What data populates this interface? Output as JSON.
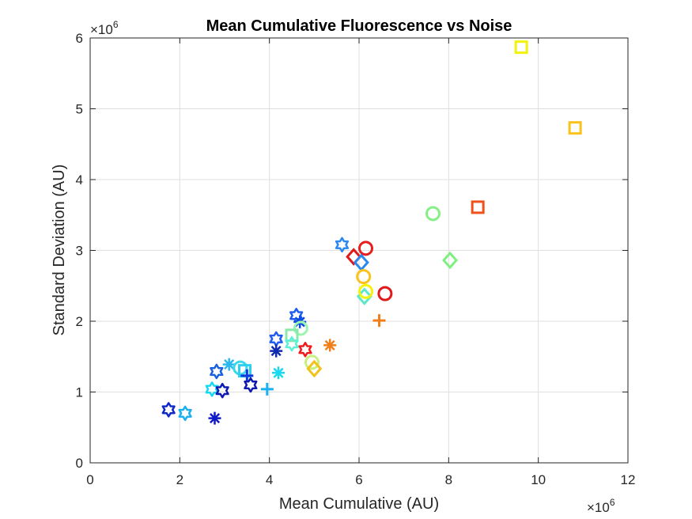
{
  "chart_data": {
    "type": "scatter",
    "title": "Mean Cumulative Fluorescence vs Noise",
    "xlabel": "Mean Cumulative (AU)",
    "ylabel": "Standard Deviation (AU)",
    "x_exponent_label": "×10",
    "x_exponent": "6",
    "y_exponent_label": "×10",
    "y_exponent": "6",
    "xlim": [
      0,
      12
    ],
    "ylim": [
      0,
      6
    ],
    "xticks": [
      "0",
      "2",
      "4",
      "6",
      "8",
      "10",
      "12"
    ],
    "yticks": [
      "0",
      "1",
      "2",
      "3",
      "4",
      "5",
      "6"
    ],
    "grid": true,
    "points": [
      {
        "x": 9.62,
        "y": 5.87,
        "marker": "square",
        "color": "#f2f20d"
      },
      {
        "x": 10.82,
        "y": 4.73,
        "marker": "square",
        "color": "#fac21a"
      },
      {
        "x": 8.65,
        "y": 3.61,
        "marker": "square",
        "color": "#f0501a"
      },
      {
        "x": 7.65,
        "y": 3.52,
        "marker": "circle",
        "color": "#85f085"
      },
      {
        "x": 8.03,
        "y": 2.86,
        "marker": "diamond",
        "color": "#7ff07f"
      },
      {
        "x": 5.62,
        "y": 3.08,
        "marker": "hexagram",
        "color": "#2b88f0"
      },
      {
        "x": 6.15,
        "y": 3.03,
        "marker": "circle",
        "color": "#e81e1e"
      },
      {
        "x": 5.88,
        "y": 2.91,
        "marker": "diamond",
        "color": "#e01a1a"
      },
      {
        "x": 6.05,
        "y": 2.83,
        "marker": "diamond",
        "color": "#2b88f0"
      },
      {
        "x": 6.1,
        "y": 2.63,
        "marker": "circle",
        "color": "#fac21a"
      },
      {
        "x": 6.58,
        "y": 2.39,
        "marker": "circle",
        "color": "#e01a1a"
      },
      {
        "x": 6.12,
        "y": 2.35,
        "marker": "diamond",
        "color": "#5ce8c8"
      },
      {
        "x": 6.15,
        "y": 2.42,
        "marker": "circle",
        "color": "#f2f20d"
      },
      {
        "x": 6.45,
        "y": 2.01,
        "marker": "plus",
        "color": "#f07f1a"
      },
      {
        "x": 4.6,
        "y": 2.08,
        "marker": "hexagram",
        "color": "#1f5cf0"
      },
      {
        "x": 4.68,
        "y": 1.99,
        "marker": "asterisk",
        "color": "#0f4ae0"
      },
      {
        "x": 4.7,
        "y": 1.9,
        "marker": "circle",
        "color": "#9af5b0"
      },
      {
        "x": 4.15,
        "y": 1.75,
        "marker": "hexagram",
        "color": "#1f5cf0"
      },
      {
        "x": 4.15,
        "y": 1.58,
        "marker": "asterisk",
        "color": "#0f2ab0"
      },
      {
        "x": 4.5,
        "y": 1.8,
        "marker": "square",
        "color": "#8ae8a8"
      },
      {
        "x": 4.5,
        "y": 1.68,
        "marker": "hexagram",
        "color": "#5cf0d8"
      },
      {
        "x": 4.8,
        "y": 1.6,
        "marker": "hexagram",
        "color": "#f01a1a"
      },
      {
        "x": 5.35,
        "y": 1.66,
        "marker": "asterisk",
        "color": "#f07f1a"
      },
      {
        "x": 4.95,
        "y": 1.42,
        "marker": "circle",
        "color": "#c8f07f"
      },
      {
        "x": 5.0,
        "y": 1.33,
        "marker": "diamond",
        "color": "#f2c21a"
      },
      {
        "x": 4.2,
        "y": 1.27,
        "marker": "asterisk",
        "color": "#1ad8f0"
      },
      {
        "x": 3.95,
        "y": 1.04,
        "marker": "plus",
        "color": "#1ab0f0"
      },
      {
        "x": 3.1,
        "y": 1.39,
        "marker": "asterisk",
        "color": "#2bb8f0"
      },
      {
        "x": 3.35,
        "y": 1.34,
        "marker": "circle",
        "color": "#3ad8e8"
      },
      {
        "x": 3.45,
        "y": 1.3,
        "marker": "square",
        "color": "#2bd0f0"
      },
      {
        "x": 3.5,
        "y": 1.23,
        "marker": "plus",
        "color": "#0f3ae0"
      },
      {
        "x": 3.58,
        "y": 1.1,
        "marker": "hexagram",
        "color": "#0f1ab0"
      },
      {
        "x": 2.82,
        "y": 1.29,
        "marker": "hexagram",
        "color": "#1a60e0"
      },
      {
        "x": 2.72,
        "y": 1.04,
        "marker": "hexagram",
        "color": "#1ad8f0"
      },
      {
        "x": 2.95,
        "y": 1.02,
        "marker": "hexagram",
        "color": "#0f1ab0"
      },
      {
        "x": 2.78,
        "y": 0.63,
        "marker": "asterisk",
        "color": "#0f1ac8"
      },
      {
        "x": 1.75,
        "y": 0.75,
        "marker": "hexagram",
        "color": "#0f2ac8"
      },
      {
        "x": 2.12,
        "y": 0.7,
        "marker": "hexagram",
        "color": "#1ab0f0"
      }
    ]
  }
}
